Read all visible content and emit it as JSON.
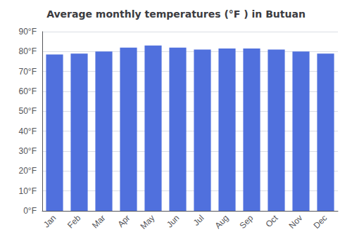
{
  "chart_data": {
    "type": "bar",
    "title": "Average monthly temperatures (°F ) in Butuan",
    "categories": [
      "Jan",
      "Feb",
      "Mar",
      "Apr",
      "May",
      "Jun",
      "Jul",
      "Aug",
      "Sep",
      "Oct",
      "Nov",
      "Dec"
    ],
    "values": [
      78.5,
      79.0,
      80.0,
      82.0,
      83.0,
      82.0,
      81.0,
      81.5,
      81.5,
      81.0,
      80.0,
      79.0
    ],
    "ylim": [
      0,
      90
    ],
    "yticks": [
      {
        "value": 0,
        "label": "0°F"
      },
      {
        "value": 10,
        "label": "10°F"
      },
      {
        "value": 20,
        "label": "20°F"
      },
      {
        "value": 30,
        "label": "30°F"
      },
      {
        "value": 40,
        "label": "40°F"
      },
      {
        "value": 50,
        "label": "50°F"
      },
      {
        "value": 60,
        "label": "60°F"
      },
      {
        "value": 70,
        "label": "70°F"
      },
      {
        "value": 80,
        "label": "80°F"
      },
      {
        "value": 90,
        "label": "90°F"
      }
    ],
    "grid": true
  }
}
